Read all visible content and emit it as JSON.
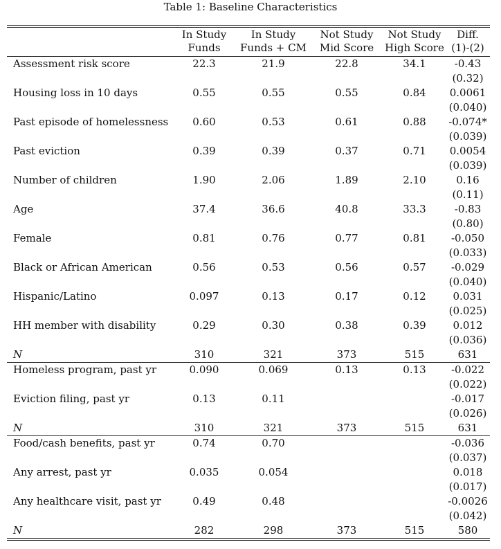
{
  "caption": "Table 1: Baseline Characteristics",
  "headers": [
    {
      "line1": "In Study",
      "line2": "Funds"
    },
    {
      "line1": "In Study",
      "line2": "Funds + CM"
    },
    {
      "line1": "Not Study",
      "line2": "Mid Score"
    },
    {
      "line1": "Not Study",
      "line2": "High Score"
    },
    {
      "line1": "Diff.",
      "line2": "(1)-(2)"
    }
  ],
  "panels": [
    {
      "rows": [
        {
          "label": "Assessment risk score",
          "values": [
            "22.3",
            "21.9",
            "22.8",
            "34.1",
            "-0.43"
          ],
          "se": "(0.32)"
        },
        {
          "label": "Housing loss in 10 days",
          "values": [
            "0.55",
            "0.55",
            "0.55",
            "0.84",
            "0.0061"
          ],
          "se": "(0.040)"
        },
        {
          "label": "Past episode of homelessness",
          "values": [
            "0.60",
            "0.53",
            "0.61",
            "0.88",
            "-0.074*"
          ],
          "se": "(0.039)"
        },
        {
          "label": "Past eviction",
          "values": [
            "0.39",
            "0.39",
            "0.37",
            "0.71",
            "0.0054"
          ],
          "se": "(0.039)"
        },
        {
          "label": "Number of children",
          "values": [
            "1.90",
            "2.06",
            "1.89",
            "2.10",
            "0.16"
          ],
          "se": "(0.11)"
        },
        {
          "label": "Age",
          "values": [
            "37.4",
            "36.6",
            "40.8",
            "33.3",
            "-0.83"
          ],
          "se": "(0.80)"
        },
        {
          "label": "Female",
          "values": [
            "0.81",
            "0.76",
            "0.77",
            "0.81",
            "-0.050"
          ],
          "se": "(0.033)"
        },
        {
          "label": "Black or African American",
          "values": [
            "0.56",
            "0.53",
            "0.56",
            "0.57",
            "-0.029"
          ],
          "se": "(0.040)"
        },
        {
          "label": "Hispanic/Latino",
          "values": [
            "0.097",
            "0.13",
            "0.17",
            "0.12",
            "0.031"
          ],
          "se": "(0.025)"
        },
        {
          "label": "HH member with disability",
          "values": [
            "0.29",
            "0.30",
            "0.38",
            "0.39",
            "0.012"
          ],
          "se": "(0.036)"
        }
      ],
      "n": {
        "label": "N",
        "values": [
          "310",
          "321",
          "373",
          "515",
          "631"
        ]
      }
    },
    {
      "rows": [
        {
          "label": "Homeless program, past yr",
          "values": [
            "0.090",
            "0.069",
            "0.13",
            "0.13",
            "-0.022"
          ],
          "se": "(0.022)"
        },
        {
          "label": "Eviction filing, past yr",
          "values": [
            "0.13",
            "0.11",
            "",
            "",
            "-0.017"
          ],
          "se": "(0.026)"
        }
      ],
      "n": {
        "label": "N",
        "values": [
          "310",
          "321",
          "373",
          "515",
          "631"
        ]
      }
    },
    {
      "rows": [
        {
          "label": "Food/cash benefits, past yr",
          "values": [
            "0.74",
            "0.70",
            "",
            "",
            "-0.036"
          ],
          "se": "(0.037)"
        },
        {
          "label": "Any arrest, past yr",
          "values": [
            "0.035",
            "0.054",
            "",
            "",
            "0.018"
          ],
          "se": "(0.017)"
        },
        {
          "label": "Any healthcare visit, past yr",
          "values": [
            "0.49",
            "0.48",
            "",
            "",
            "-0.0026"
          ],
          "se": "(0.042)"
        }
      ],
      "n": {
        "label": "N",
        "values": [
          "282",
          "298",
          "373",
          "515",
          "580"
        ]
      }
    }
  ]
}
